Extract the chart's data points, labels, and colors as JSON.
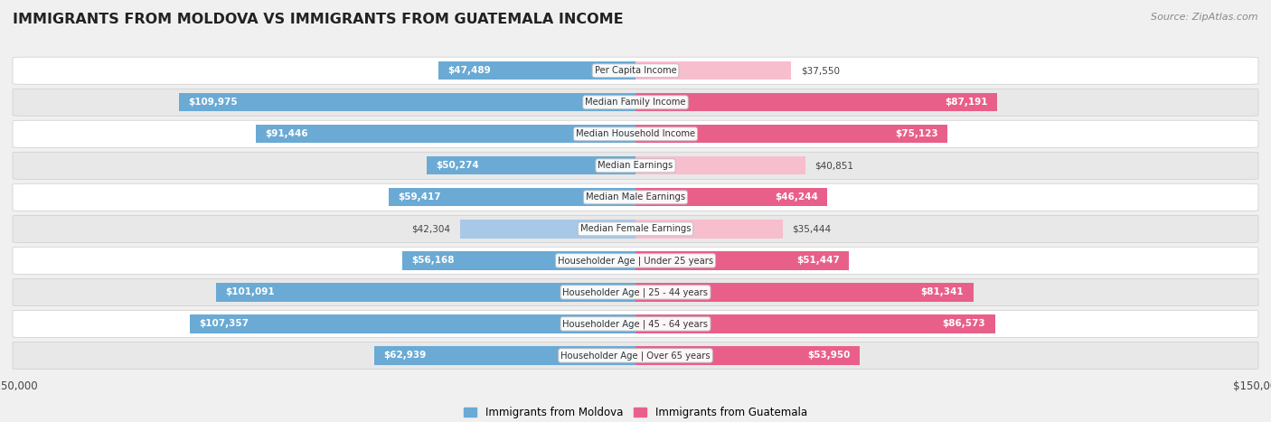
{
  "title": "IMMIGRANTS FROM MOLDOVA VS IMMIGRANTS FROM GUATEMALA INCOME",
  "source": "Source: ZipAtlas.com",
  "categories": [
    "Per Capita Income",
    "Median Family Income",
    "Median Household Income",
    "Median Earnings",
    "Median Male Earnings",
    "Median Female Earnings",
    "Householder Age | Under 25 years",
    "Householder Age | 25 - 44 years",
    "Householder Age | 45 - 64 years",
    "Householder Age | Over 65 years"
  ],
  "moldova_values": [
    47489,
    109975,
    91446,
    50274,
    59417,
    42304,
    56168,
    101091,
    107357,
    62939
  ],
  "guatemala_values": [
    37550,
    87191,
    75123,
    40851,
    46244,
    35444,
    51447,
    81341,
    86573,
    53950
  ],
  "moldova_color_light": "#a8c8e8",
  "moldova_color_dark": "#6aaad4",
  "guatemala_color_light": "#f7bece",
  "guatemala_color_dark": "#e8608a",
  "max_value": 150000,
  "background_color": "#f0f0f0",
  "row_bg_light": "#ffffff",
  "row_bg_dark": "#e8e8e8",
  "legend_moldova": "Immigrants from Moldova",
  "legend_guatemala": "Immigrants from Guatemala",
  "inside_label_threshold": 0.3
}
